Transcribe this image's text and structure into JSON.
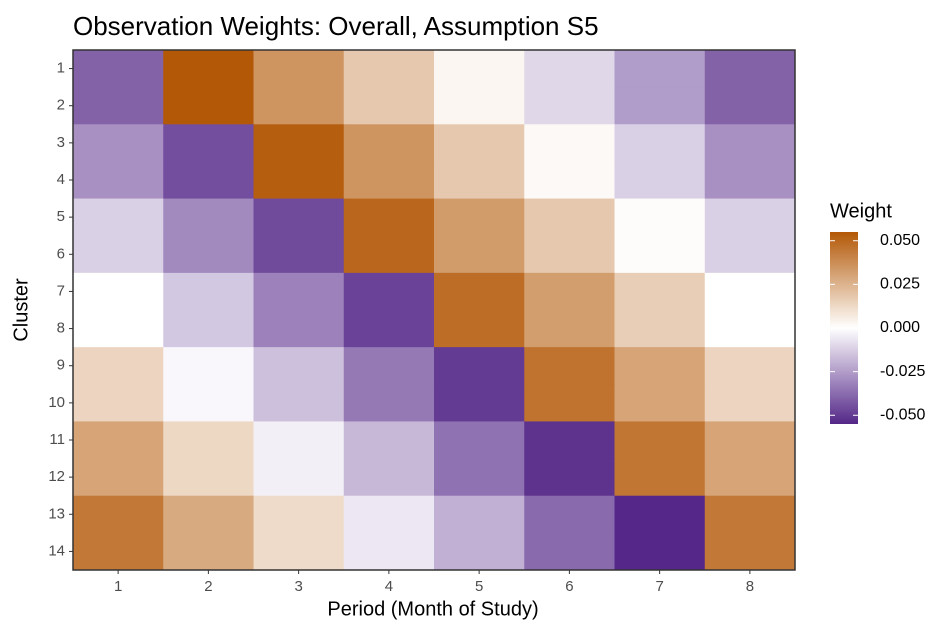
{
  "chart_data": {
    "type": "heatmap",
    "title": "Observation Weights: Overall, Assumption S5",
    "x_label": "Period (Month of Study)",
    "y_label": "Cluster",
    "legend_title": "Weight",
    "categories": [
      1,
      2,
      3,
      4,
      5,
      6,
      7,
      8
    ],
    "y_categories": [
      1,
      2,
      3,
      4,
      5,
      6,
      7,
      8,
      9,
      10,
      11,
      12,
      13,
      14
    ],
    "values": [
      [
        -0.04,
        0.055,
        0.035,
        0.018,
        0.003,
        -0.01,
        -0.025,
        -0.04
      ],
      [
        -0.04,
        0.055,
        0.035,
        0.018,
        0.003,
        -0.01,
        -0.025,
        -0.04
      ],
      [
        -0.028,
        -0.045,
        0.053,
        0.035,
        0.018,
        0.002,
        -0.012,
        -0.028
      ],
      [
        -0.028,
        -0.045,
        0.053,
        0.035,
        0.018,
        0.002,
        -0.012,
        -0.028
      ],
      [
        -0.012,
        -0.03,
        -0.046,
        0.05,
        0.033,
        0.018,
        0.001,
        -0.012
      ],
      [
        -0.012,
        -0.03,
        -0.046,
        0.05,
        0.033,
        0.018,
        0.001,
        -0.012
      ],
      [
        0.0,
        -0.014,
        -0.032,
        -0.048,
        0.048,
        0.032,
        0.016,
        0.0
      ],
      [
        0.0,
        -0.014,
        -0.032,
        -0.048,
        0.048,
        0.032,
        0.016,
        0.0
      ],
      [
        0.014,
        -0.002,
        -0.016,
        -0.034,
        -0.05,
        0.046,
        0.03,
        0.014
      ],
      [
        0.014,
        -0.002,
        -0.016,
        -0.034,
        -0.05,
        0.046,
        0.03,
        0.014
      ],
      [
        0.03,
        0.013,
        -0.004,
        -0.018,
        -0.036,
        -0.052,
        0.045,
        0.03
      ],
      [
        0.03,
        0.013,
        -0.004,
        -0.018,
        -0.036,
        -0.052,
        0.045,
        0.03
      ],
      [
        0.044,
        0.028,
        0.012,
        -0.006,
        -0.02,
        -0.038,
        -0.055,
        0.044
      ],
      [
        0.044,
        0.028,
        0.012,
        -0.006,
        -0.02,
        -0.038,
        -0.055,
        0.044
      ]
    ],
    "clim": [
      -0.055,
      0.055
    ],
    "cticks": [
      {
        "value": 0.05,
        "label": "0.050"
      },
      {
        "value": 0.025,
        "label": "0.025"
      },
      {
        "value": 0,
        "label": "0.000"
      },
      {
        "value": -0.025,
        "label": "-0.025"
      },
      {
        "value": -0.05,
        "label": "-0.050"
      }
    ],
    "low_color": "#542788",
    "mid_color": "#ffffff",
    "high_color": "#b35806"
  }
}
